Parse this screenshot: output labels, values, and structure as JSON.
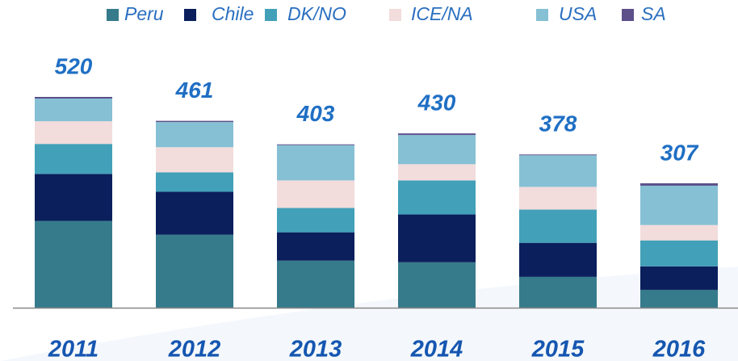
{
  "chart_data": {
    "type": "stacked_bar",
    "categories": [
      "2011",
      "2012",
      "2013",
      "2014",
      "2015",
      "2016"
    ],
    "totals": [
      520,
      461,
      403,
      430,
      378,
      307
    ],
    "series": [
      {
        "name": "Peru",
        "color": "#367b8c",
        "values": [
          214,
          180,
          116,
          112,
          76,
          44
        ]
      },
      {
        "name": "Chile",
        "color": "#0a1f5c",
        "values": [
          116,
          106,
          70,
          118,
          84,
          58
        ]
      },
      {
        "name": "DK/NO",
        "color": "#42a0b8",
        "values": [
          74,
          48,
          60,
          84,
          82,
          64
        ]
      },
      {
        "name": "ICE/NA",
        "color": "#f2dcdc",
        "values": [
          56,
          62,
          68,
          40,
          56,
          38
        ]
      },
      {
        "name": "USA",
        "color": "#86c0d4",
        "values": [
          56,
          62,
          87,
          72,
          78,
          97
        ]
      },
      {
        "name": "SA",
        "color": "#5c4f8a",
        "values": [
          4,
          3,
          2,
          4,
          2,
          6
        ]
      }
    ]
  }
}
